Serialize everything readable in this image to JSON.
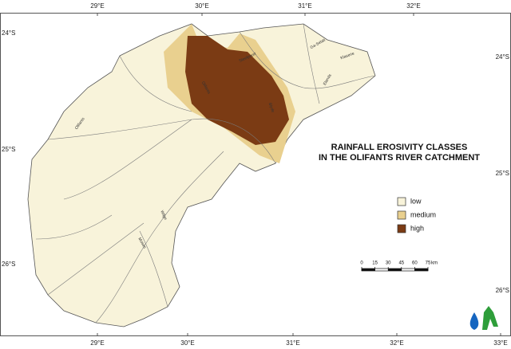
{
  "map": {
    "title": [
      "RAINFALL EROSIVITY CLASSES",
      "IN THE OLIFANTS RIVER CATCHMENT"
    ],
    "legend": [
      {
        "label": "low",
        "color": "#f8f3da"
      },
      {
        "label": "medium",
        "color": "#e9d08f"
      },
      {
        "label": "high",
        "color": "#7b3b14"
      }
    ],
    "top_longitudes": [
      "29°E",
      "30°E",
      "31°E",
      "32°E"
    ],
    "bottom_longitudes": [
      "29°E",
      "30°E",
      "31°E",
      "32°E",
      "33°E"
    ],
    "left_latitudes": [
      "24°S",
      "25°S",
      "26°S"
    ],
    "right_latitudes": [
      "24°S",
      "25°S",
      "26°S"
    ],
    "scale": {
      "ticks": [
        0,
        15,
        30,
        45,
        60,
        75
      ],
      "unit": "km"
    },
    "rivers": [
      "Olifants",
      "Steelpoort",
      "Olifants",
      "Elands",
      "Klaserie",
      "Ga-Selati",
      "Blyde",
      "Wilge",
      "Moses"
    ]
  }
}
